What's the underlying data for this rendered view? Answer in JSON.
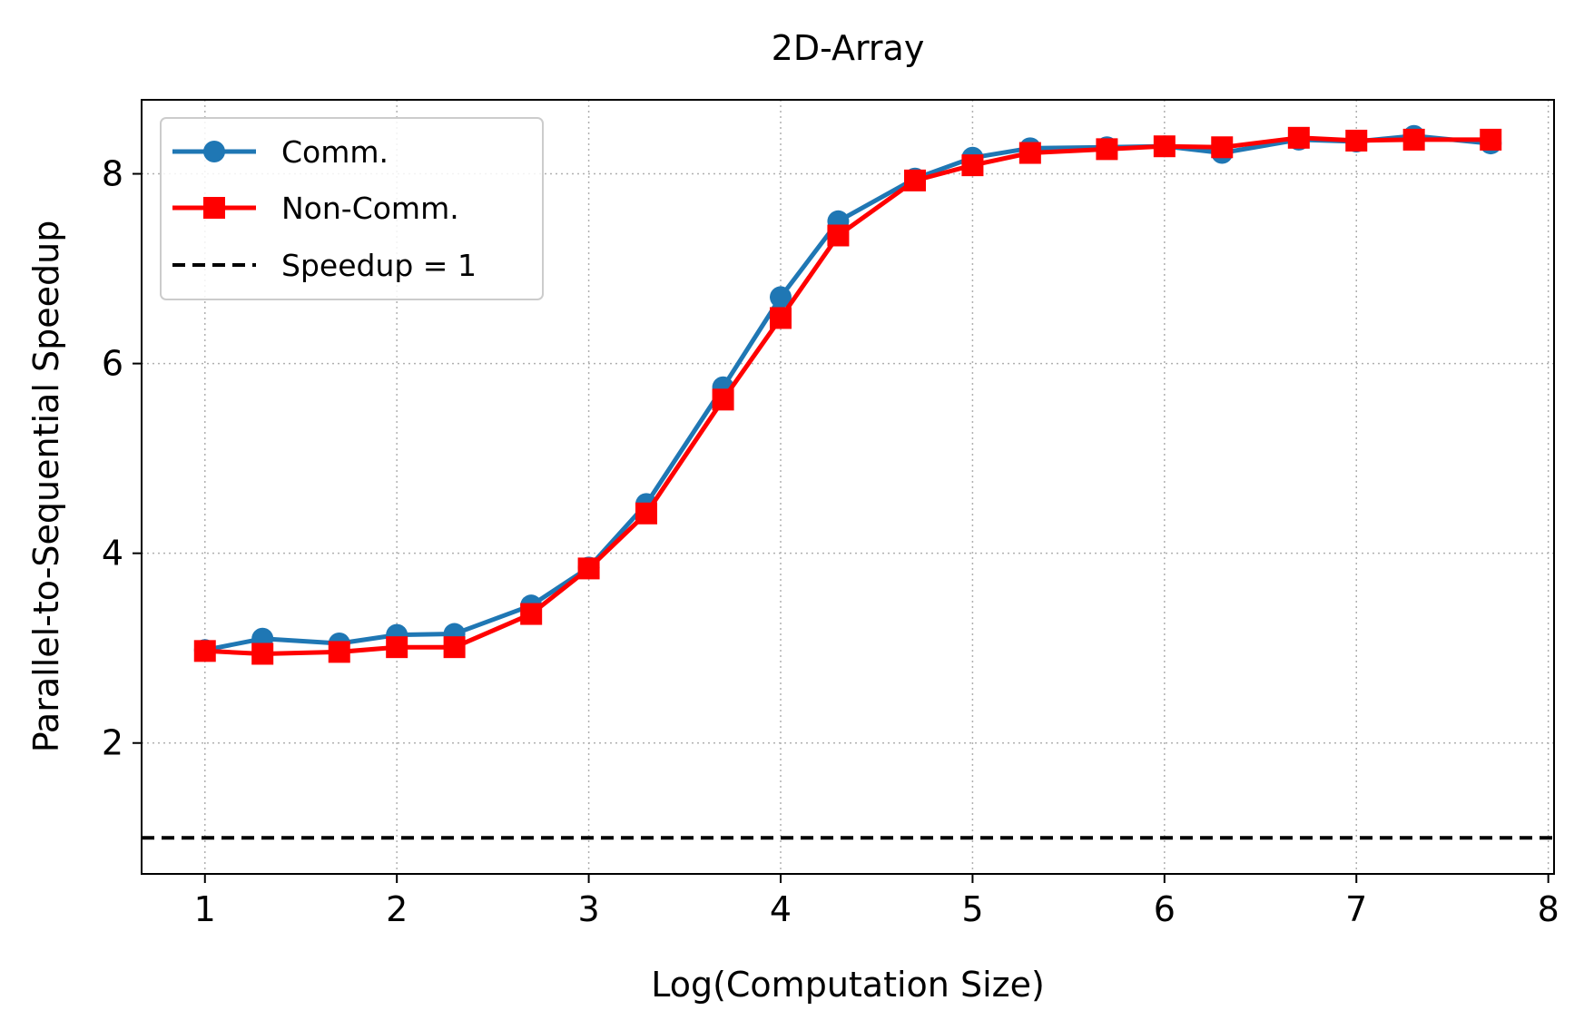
{
  "chart_data": {
    "type": "line",
    "title": "2D-Array",
    "xlabel": "Log(Computation Size)",
    "ylabel": "Parallel-to-Sequential Speedup",
    "xlim": [
      0.67,
      8.03
    ],
    "ylim": [
      0.62,
      8.78
    ],
    "xticks": [
      1,
      2,
      3,
      4,
      5,
      6,
      7,
      8
    ],
    "yticks": [
      2,
      4,
      6,
      8
    ],
    "grid": true,
    "legend_position": "top-left",
    "x": [
      1.0,
      1.3,
      1.7,
      2.0,
      2.3,
      2.7,
      3.0,
      3.3,
      3.7,
      4.0,
      4.3,
      4.7,
      5.0,
      5.3,
      5.7,
      6.0,
      6.3,
      6.7,
      7.0,
      7.3,
      7.7
    ],
    "series": [
      {
        "name": "Comm.",
        "color": "#1f77b4",
        "marker": "circle",
        "values": [
          2.98,
          3.1,
          3.05,
          3.14,
          3.15,
          3.45,
          3.85,
          4.52,
          5.75,
          6.7,
          7.5,
          7.95,
          8.17,
          8.27,
          8.28,
          8.29,
          8.22,
          8.36,
          8.34,
          8.4,
          8.32
        ]
      },
      {
        "name": "Non-Comm.",
        "color": "#ff0000",
        "marker": "square",
        "values": [
          2.97,
          2.94,
          2.96,
          3.01,
          3.01,
          3.36,
          3.84,
          4.42,
          5.62,
          6.48,
          7.35,
          7.93,
          8.09,
          8.22,
          8.26,
          8.29,
          8.28,
          8.38,
          8.35,
          8.36,
          8.36
        ]
      }
    ],
    "reference_line": {
      "name": "Speedup = 1",
      "y": 1,
      "color": "#000000",
      "style": "dashed"
    }
  }
}
